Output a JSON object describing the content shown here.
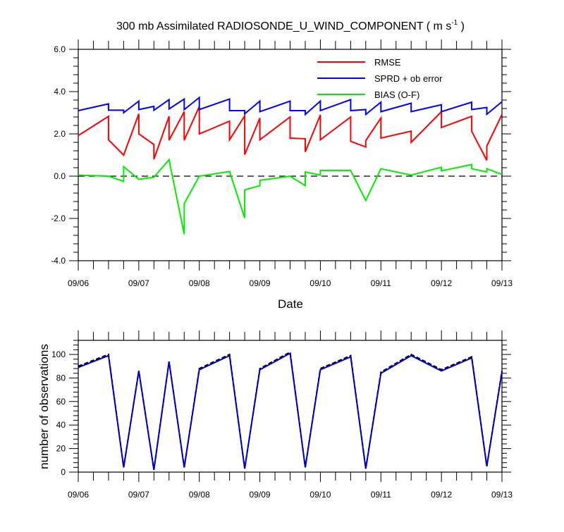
{
  "chart_data": [
    {
      "type": "line",
      "title_main": "300 mb Assimilated RADIOSONDE_U_WIND_COMPONENT ( m s",
      "title_sup": "-1",
      "title_close": " )",
      "xlabel": "Date",
      "ylabel": "",
      "x_ticklabels": [
        "09/06",
        "09/07",
        "09/08",
        "09/09",
        "09/10",
        "09/11",
        "09/12",
        "09/13"
      ],
      "xlim": [
        0,
        7
      ],
      "ylim": [
        -4,
        6
      ],
      "y_ticks": [
        -4,
        -2,
        0,
        2,
        4,
        6
      ],
      "y_ticklabels": [
        "-4.0",
        "-2.0",
        "0.0",
        "2.0",
        "4.0",
        "6.0"
      ],
      "zero_line": true,
      "grid": false,
      "legend_position": "top-right",
      "series": [
        {
          "name": "RMSE",
          "color": "#ff0000",
          "x": [
            0,
            0.5,
            0.5,
            0.75,
            1,
            1,
            1.25,
            1.25,
            1.5,
            1.5,
            1.75,
            1.75,
            2,
            2,
            2.5,
            2.5,
            2.75,
            2.75,
            3,
            3,
            3.5,
            3.5,
            3.75,
            3.75,
            4,
            4,
            4.5,
            4.5,
            4.75,
            4.75,
            5,
            5,
            5.5,
            5.5,
            6,
            6,
            6.5,
            6.5,
            6.75,
            6.75,
            7
          ],
          "y": [
            1.92,
            2.83,
            1.72,
            1.0,
            2.95,
            2.0,
            1.5,
            0.8,
            2.83,
            1.7,
            3.05,
            1.7,
            3.3,
            2.0,
            2.6,
            1.72,
            2.85,
            1.02,
            2.75,
            1.72,
            2.8,
            1.8,
            1.77,
            1.15,
            2.9,
            1.72,
            2.8,
            1.65,
            1.38,
            1.68,
            2.75,
            1.8,
            2.13,
            1.6,
            3.05,
            2.3,
            2.83,
            2.12,
            0.75,
            1.42,
            2.92
          ]
        },
        {
          "name": "SPRD + ob error",
          "color": "#0000ff",
          "x": [
            0,
            0.5,
            0.5,
            0.75,
            0.75,
            1,
            1,
            1.25,
            1.25,
            1.5,
            1.5,
            1.75,
            1.75,
            2,
            2,
            2.5,
            2.5,
            2.75,
            2.75,
            3,
            3,
            3.5,
            3.5,
            3.75,
            3.75,
            4,
            4,
            4.5,
            4.5,
            4.75,
            4.75,
            5,
            5,
            5.5,
            5.5,
            6,
            6,
            6.5,
            6.5,
            6.75,
            6.75,
            7
          ],
          "y": [
            3.1,
            3.42,
            3.12,
            3.12,
            3.0,
            3.55,
            3.15,
            3.3,
            3.12,
            3.62,
            3.18,
            3.65,
            3.15,
            3.72,
            3.15,
            3.65,
            3.1,
            3.1,
            2.95,
            3.55,
            3.05,
            3.55,
            3.1,
            3.1,
            2.92,
            3.55,
            3.1,
            3.62,
            3.1,
            3.15,
            2.92,
            3.5,
            3.05,
            3.45,
            3.05,
            3.38,
            3.05,
            3.5,
            3.15,
            3.25,
            2.93,
            3.52
          ]
        },
        {
          "name": "BIAS (O-F)",
          "color": "#00ee00",
          "x": [
            0,
            0.5,
            0.75,
            0.75,
            1,
            1.25,
            1.5,
            1.75,
            1.75,
            2,
            2.5,
            2.75,
            2.75,
            3,
            3,
            3.5,
            3.75,
            3.75,
            4,
            4,
            4.5,
            4.75,
            5,
            5.5,
            6,
            6,
            6.5,
            6.5,
            6.75,
            6.75,
            7
          ],
          "y": [
            0.05,
            0.0,
            -0.25,
            0.45,
            -0.15,
            -0.05,
            0.78,
            -2.75,
            -1.3,
            0.0,
            0.22,
            -1.98,
            -0.65,
            -0.45,
            -0.2,
            0.0,
            -0.45,
            0.2,
            0.05,
            0.27,
            0.27,
            -1.15,
            0.35,
            0.05,
            0.42,
            0.25,
            0.55,
            0.35,
            0.2,
            0.35,
            0.08
          ]
        }
      ]
    },
    {
      "type": "line",
      "title": "",
      "xlabel": "",
      "ylabel": "number of observations",
      "x_ticklabels": [
        "09/06",
        "09/07",
        "09/08",
        "09/09",
        "09/10",
        "09/11",
        "09/12",
        "09/13"
      ],
      "xlim": [
        0,
        7
      ],
      "ylim": [
        0,
        112
      ],
      "y_ticks": [
        0,
        20,
        40,
        60,
        80,
        100
      ],
      "y_ticklabels": [
        "0",
        "20",
        "40",
        "60",
        "80",
        "100"
      ],
      "grid": false,
      "series": [
        {
          "color": "#000000",
          "dashed": true,
          "x": [
            0,
            0.5,
            0.75,
            1,
            1.25,
            1.5,
            1.75,
            2,
            2.5,
            2.75,
            3,
            3.5,
            3.75,
            4,
            4.5,
            4.75,
            5,
            5.5,
            6,
            6.5,
            6.75,
            7
          ],
          "y": [
            90,
            100,
            4,
            86,
            2,
            94,
            4,
            88,
            100,
            3,
            88,
            102,
            4,
            88,
            99,
            3,
            85,
            100,
            87,
            98,
            5,
            86
          ]
        },
        {
          "color": "#0000c8",
          "x": [
            0,
            0.5,
            0.75,
            1,
            1.25,
            1.5,
            1.75,
            2,
            2.5,
            2.75,
            3,
            3.5,
            3.75,
            4,
            4.5,
            4.75,
            5,
            5.5,
            6,
            6.5,
            6.75,
            7
          ],
          "y": [
            89,
            99,
            4,
            86,
            2,
            94,
            4,
            87,
            99,
            3,
            87,
            101,
            4,
            87,
            98,
            3,
            84,
            99,
            86,
            97,
            5,
            85
          ]
        }
      ]
    }
  ]
}
